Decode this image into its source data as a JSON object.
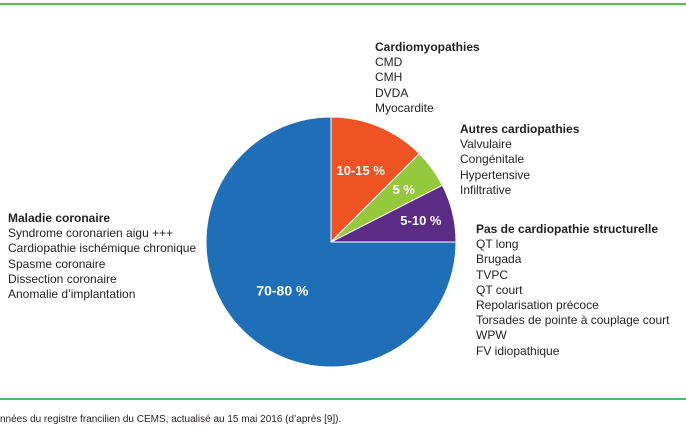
{
  "colors": {
    "rule": "#5cb85c",
    "maladie_coronaire": "#1f6fb8",
    "cardiomyopathies": "#ef5323",
    "autres_cardiopathies": "#95c83d",
    "pas_de_cardiopathie": "#5b2c86"
  },
  "chart_data": {
    "type": "pie",
    "title": "",
    "start_angle_deg": 0,
    "direction": "clockwise",
    "slices": [
      {
        "key": "cardiomyopathies",
        "label": "10-15 %",
        "value": 12.5,
        "color": "#ef5323",
        "group_title": "Cardiomyopathies",
        "items": [
          "CMD",
          "CMH",
          "DVDA",
          "Myocardite"
        ]
      },
      {
        "key": "autres_cardiopathies",
        "label": "5 %",
        "value": 5,
        "color": "#95c83d",
        "group_title": "Autres cardiopathies",
        "items": [
          "Valvulaire",
          "Congénitale",
          "Hypertensive",
          "Infiltrative"
        ]
      },
      {
        "key": "pas_de_cardiopathie",
        "label": "5-10 %",
        "value": 7.5,
        "color": "#5b2c86",
        "group_title": "Pas de cardiopathie structurelle",
        "items": [
          "QT long",
          "Brugada",
          "TVPC",
          "QT court",
          "Repolarisation précoce",
          "Torsades de pointe à couplage court",
          "WPW",
          "FV idiopathique"
        ]
      },
      {
        "key": "maladie_coronaire",
        "label": "70-80 %",
        "value": 75,
        "color": "#1f6fb8",
        "group_title": "Maladie coronaire",
        "items": [
          "Syndrome coronarien aigu +++",
          "Cardiopathie ischémique chronique",
          "Spasme coronaire",
          "Dissection coronaire",
          "Anomalie d’implantation"
        ]
      }
    ]
  },
  "caption": "nnées du registre francilien du CEMS, actualisé au 15 mai 2016 (d’après [9])."
}
